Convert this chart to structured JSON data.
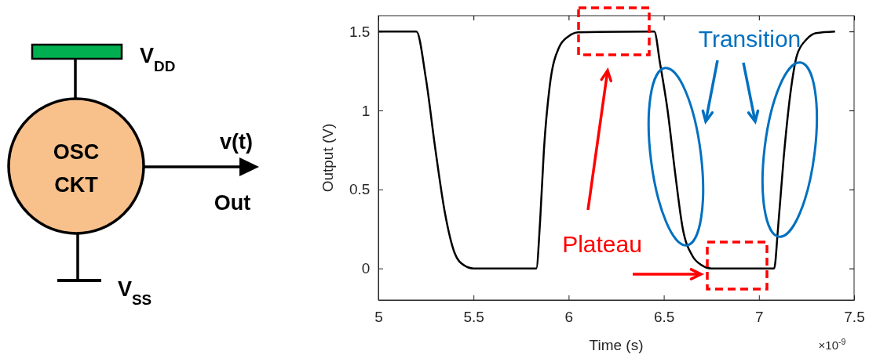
{
  "chart_data": {
    "type": "line",
    "xlabel": "Time (s)",
    "ylabel": "Output (V)",
    "x": [
      5.0,
      5.2,
      5.25,
      5.3,
      5.35,
      5.4,
      5.45,
      5.5,
      5.83,
      5.85,
      5.87,
      5.9,
      5.95,
      6.0,
      6.05,
      6.45,
      6.48,
      6.52,
      6.56,
      6.6,
      6.65,
      6.7,
      6.75,
      7.08,
      7.1,
      7.13,
      7.17,
      7.2,
      7.25,
      7.3,
      7.4
    ],
    "series": [
      {
        "color": "#000000",
        "values": [
          1.5,
          1.5,
          1.2,
          0.75,
          0.35,
          0.1,
          0.02,
          0,
          0,
          0.3,
          0.75,
          1.15,
          1.4,
          1.47,
          1.495,
          1.5,
          1.3,
          1.0,
          0.6,
          0.25,
          0.08,
          0.02,
          0,
          0,
          0.25,
          0.7,
          1.15,
          1.35,
          1.45,
          1.49,
          1.5
        ]
      }
    ],
    "xlim": [
      5,
      7.5
    ],
    "xticks": [
      5,
      5.5,
      6,
      6.5,
      7,
      7.5
    ],
    "ylim": [
      -0.2,
      1.6
    ],
    "yticks": [
      0,
      0.5,
      1,
      1.5
    ],
    "marker": "none",
    "line_style": "solid",
    "annotations": [
      "×10$^{-9}$",
      "Transition",
      "Plateau",
      "V$_{DD}$",
      "OSC",
      "CKT",
      "v(t)",
      "Out",
      "V$_{SS}$"
    ]
  }
}
